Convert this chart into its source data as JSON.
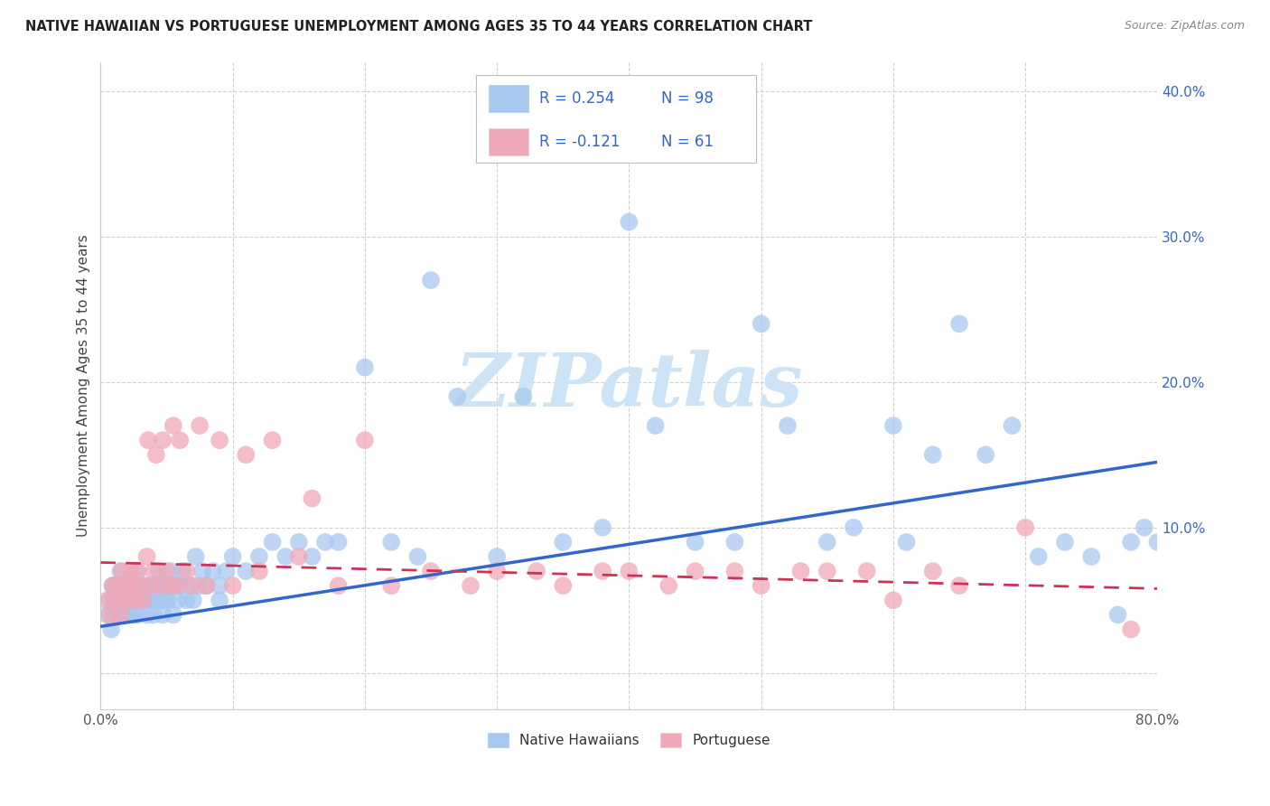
{
  "title": "NATIVE HAWAIIAN VS PORTUGUESE UNEMPLOYMENT AMONG AGES 35 TO 44 YEARS CORRELATION CHART",
  "source": "Source: ZipAtlas.com",
  "ylabel": "Unemployment Among Ages 35 to 44 years",
  "xlim": [
    0.0,
    0.8
  ],
  "ylim": [
    -0.025,
    0.42
  ],
  "xticks": [
    0.0,
    0.1,
    0.2,
    0.3,
    0.4,
    0.5,
    0.6,
    0.7,
    0.8
  ],
  "xticklabels": [
    "0.0%",
    "",
    "",
    "",
    "",
    "",
    "",
    "",
    "80.0%"
  ],
  "yticks": [
    0.0,
    0.1,
    0.2,
    0.3,
    0.4
  ],
  "yticklabels": [
    "",
    "10.0%",
    "20.0%",
    "30.0%",
    "40.0%"
  ],
  "legend_r_blue": "R = 0.254",
  "legend_n_blue": "N = 98",
  "legend_r_pink": "R = -0.121",
  "legend_n_pink": "N = 61",
  "blue_color": "#a8c8f0",
  "pink_color": "#f0a8b8",
  "blue_line_color": "#3366cc",
  "pink_line_color": "#cc3355",
  "legend_text_color": "#3366cc",
  "watermark_color": "#cce4f5",
  "blue_x": [
    0.005,
    0.007,
    0.008,
    0.009,
    0.01,
    0.01,
    0.01,
    0.012,
    0.013,
    0.015,
    0.015,
    0.016,
    0.017,
    0.018,
    0.019,
    0.02,
    0.021,
    0.022,
    0.023,
    0.025,
    0.025,
    0.026,
    0.027,
    0.028,
    0.03,
    0.03,
    0.032,
    0.033,
    0.035,
    0.035,
    0.036,
    0.038,
    0.04,
    0.041,
    0.042,
    0.044,
    0.045,
    0.046,
    0.047,
    0.048,
    0.05,
    0.051,
    0.053,
    0.055,
    0.056,
    0.058,
    0.06,
    0.062,
    0.065,
    0.067,
    0.07,
    0.072,
    0.075,
    0.077,
    0.08,
    0.085,
    0.09,
    0.09,
    0.095,
    0.1,
    0.11,
    0.12,
    0.13,
    0.14,
    0.15,
    0.16,
    0.17,
    0.18,
    0.2,
    0.22,
    0.24,
    0.25,
    0.27,
    0.3,
    0.32,
    0.35,
    0.38,
    0.4,
    0.42,
    0.45,
    0.48,
    0.5,
    0.52,
    0.55,
    0.57,
    0.6,
    0.61,
    0.63,
    0.65,
    0.67,
    0.69,
    0.71,
    0.73,
    0.75,
    0.77,
    0.78,
    0.79,
    0.8
  ],
  "blue_y": [
    0.04,
    0.05,
    0.03,
    0.06,
    0.04,
    0.05,
    0.06,
    0.05,
    0.06,
    0.04,
    0.07,
    0.05,
    0.06,
    0.04,
    0.05,
    0.05,
    0.04,
    0.06,
    0.05,
    0.04,
    0.06,
    0.05,
    0.07,
    0.04,
    0.05,
    0.06,
    0.05,
    0.06,
    0.04,
    0.05,
    0.06,
    0.05,
    0.04,
    0.06,
    0.05,
    0.07,
    0.05,
    0.06,
    0.04,
    0.05,
    0.06,
    0.05,
    0.07,
    0.04,
    0.06,
    0.05,
    0.06,
    0.07,
    0.05,
    0.06,
    0.05,
    0.08,
    0.06,
    0.07,
    0.06,
    0.07,
    0.05,
    0.06,
    0.07,
    0.08,
    0.07,
    0.08,
    0.09,
    0.08,
    0.09,
    0.08,
    0.09,
    0.09,
    0.21,
    0.09,
    0.08,
    0.27,
    0.19,
    0.08,
    0.19,
    0.09,
    0.1,
    0.31,
    0.17,
    0.09,
    0.09,
    0.24,
    0.17,
    0.09,
    0.1,
    0.17,
    0.09,
    0.15,
    0.24,
    0.15,
    0.17,
    0.08,
    0.09,
    0.08,
    0.04,
    0.09,
    0.1,
    0.09
  ],
  "pink_x": [
    0.005,
    0.007,
    0.009,
    0.01,
    0.012,
    0.015,
    0.016,
    0.018,
    0.02,
    0.021,
    0.023,
    0.025,
    0.027,
    0.028,
    0.03,
    0.032,
    0.035,
    0.036,
    0.038,
    0.04,
    0.042,
    0.045,
    0.047,
    0.05,
    0.053,
    0.055,
    0.058,
    0.06,
    0.065,
    0.07,
    0.075,
    0.08,
    0.09,
    0.1,
    0.11,
    0.12,
    0.13,
    0.15,
    0.16,
    0.18,
    0.2,
    0.22,
    0.25,
    0.28,
    0.3,
    0.33,
    0.35,
    0.38,
    0.4,
    0.43,
    0.45,
    0.48,
    0.5,
    0.53,
    0.55,
    0.58,
    0.6,
    0.63,
    0.65,
    0.7,
    0.78
  ],
  "pink_y": [
    0.05,
    0.04,
    0.06,
    0.05,
    0.06,
    0.04,
    0.07,
    0.05,
    0.06,
    0.05,
    0.07,
    0.06,
    0.05,
    0.07,
    0.06,
    0.05,
    0.08,
    0.16,
    0.06,
    0.07,
    0.15,
    0.06,
    0.16,
    0.07,
    0.06,
    0.17,
    0.06,
    0.16,
    0.07,
    0.06,
    0.17,
    0.06,
    0.16,
    0.06,
    0.15,
    0.07,
    0.16,
    0.08,
    0.12,
    0.06,
    0.16,
    0.06,
    0.07,
    0.06,
    0.07,
    0.07,
    0.06,
    0.07,
    0.07,
    0.06,
    0.07,
    0.07,
    0.06,
    0.07,
    0.07,
    0.07,
    0.05,
    0.07,
    0.06,
    0.1,
    0.03
  ],
  "blue_trend_x": [
    0.0,
    0.8
  ],
  "blue_trend_y": [
    0.032,
    0.145
  ],
  "pink_trend_x": [
    0.0,
    0.8
  ],
  "pink_trend_y": [
    0.076,
    0.058
  ],
  "figsize": [
    14.06,
    8.92
  ],
  "dpi": 100
}
